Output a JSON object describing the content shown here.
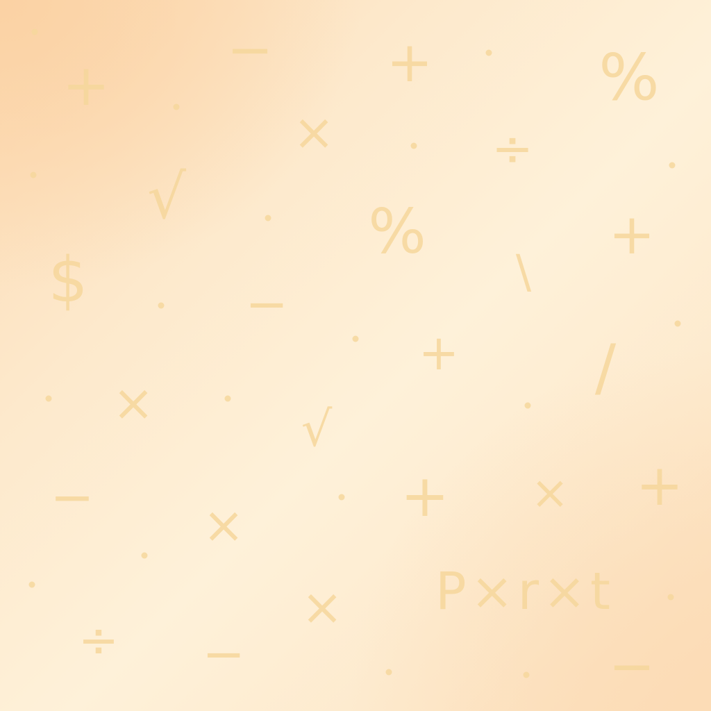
{
  "background": {
    "colors": [
      "#fbd2a4",
      "#fde9cc",
      "#fef1d9",
      "#fcdcb8"
    ],
    "symbol_color": "#f6d79c"
  },
  "symbols": {
    "plus_1": "+",
    "minus_1": "−",
    "plus_2": "+",
    "percent_1": "%",
    "times_1": "×",
    "divide_1": "÷",
    "sqrt_1": "√",
    "percent_2": "%",
    "plus_3": "+",
    "dollar_1": "$",
    "backslash_1": "\\",
    "minus_2": "−",
    "plus_4": "+",
    "slash_1": "/",
    "times_2": "×",
    "sqrt_2": "√",
    "minus_3": "−",
    "plus_5": "+",
    "times_3": "×",
    "plus_6": "+",
    "times_4": "×",
    "times_5": "×",
    "divide_2": "÷",
    "minus_4": "−",
    "minus_5": "−"
  },
  "formula": "P×r×t"
}
